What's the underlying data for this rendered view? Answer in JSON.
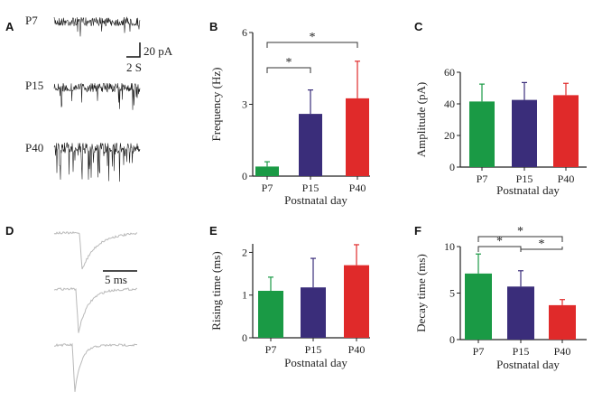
{
  "colors": {
    "P7": "#1a9a45",
    "P15": "#3a2d7a",
    "P40": "#e02a2a",
    "trace": "#1e1e1e",
    "avg": "#b9b9b9"
  },
  "panel_letters": [
    "A",
    "B",
    "C",
    "D",
    "E",
    "F"
  ],
  "panel_a": {
    "trace_labels": [
      "P7",
      "P15",
      "P40"
    ],
    "scale_y": "20 pA",
    "scale_x": "2 S"
  },
  "panel_d": {
    "scale_x": "5 ms"
  },
  "chart_data": [
    {
      "panel": "B",
      "type": "bar",
      "categories": [
        "P7",
        "P15",
        "P40"
      ],
      "values": [
        0.4,
        2.6,
        3.25
      ],
      "errors": [
        0.2,
        1.0,
        1.55
      ],
      "ylabel": "Frequency (Hz)",
      "xlabel": "Postnatal day",
      "ylim": [
        0,
        6
      ],
      "yticks": [
        0,
        3,
        6
      ],
      "significance": [
        {
          "from": "P7",
          "to": "P15",
          "label": "*"
        },
        {
          "from": "P7",
          "to": "P40",
          "label": "*"
        }
      ]
    },
    {
      "panel": "C",
      "type": "bar",
      "categories": [
        "P7",
        "P15",
        "P40"
      ],
      "values": [
        41.5,
        42.5,
        45.5
      ],
      "errors": [
        11,
        11,
        7.5
      ],
      "ylabel": "Amplitude (pA)",
      "xlabel": "Postnatal day",
      "ylim": [
        0,
        60
      ],
      "yticks": [
        0,
        20,
        40,
        60
      ],
      "significance": []
    },
    {
      "panel": "E",
      "type": "bar",
      "categories": [
        "P7",
        "P15",
        "P40"
      ],
      "values": [
        1.1,
        1.18,
        1.7
      ],
      "errors": [
        0.32,
        0.68,
        0.48
      ],
      "ylabel": "Rising time (ms)",
      "xlabel": "Postnatal day",
      "ylim": [
        0,
        2.2
      ],
      "yticks": [
        0,
        1,
        2
      ],
      "significance": []
    },
    {
      "panel": "F",
      "type": "bar",
      "categories": [
        "P7",
        "P15",
        "P40"
      ],
      "values": [
        7.1,
        5.7,
        3.7
      ],
      "errors": [
        2.1,
        1.7,
        0.6
      ],
      "ylabel": "Decay time (ms)",
      "xlabel": "Postnatal day",
      "ylim": [
        0,
        10
      ],
      "yticks": [
        0,
        5,
        10
      ],
      "significance": [
        {
          "from": "P7",
          "to": "P40",
          "label": "*"
        },
        {
          "from": "P7",
          "to": "P15",
          "label": "*"
        },
        {
          "from": "P15",
          "to": "P40",
          "label": "*"
        }
      ]
    }
  ]
}
